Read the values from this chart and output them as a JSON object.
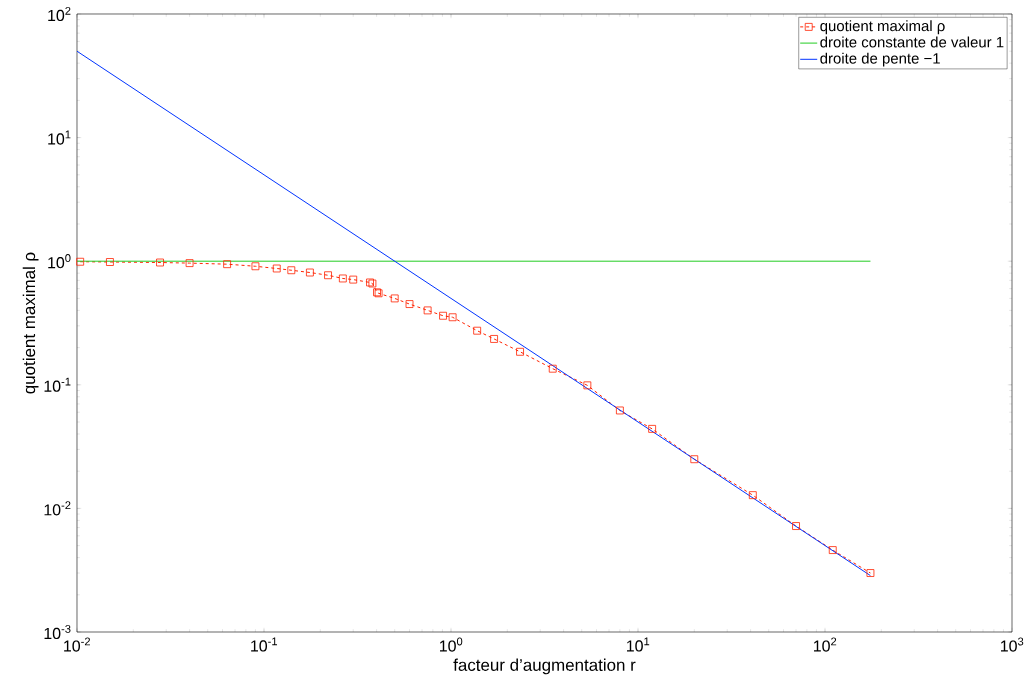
{
  "chart_data": {
    "type": "line",
    "xlabel": "facteur d’augmentation r",
    "ylabel": "quotient maximal ρ",
    "log": "xy",
    "grid": false,
    "legend": "top right",
    "xlim": [
      0.01,
      1000
    ],
    "ylim": [
      0.001,
      100
    ],
    "xticks": [
      {
        "value": 0.01,
        "label": "10$^{-2}$"
      },
      {
        "value": 0.1,
        "label": "10$^{-1}$"
      },
      {
        "value": 1,
        "label": "10$^{0}$"
      },
      {
        "value": 10,
        "label": "10$^{1}$"
      },
      {
        "value": 100,
        "label": "10$^{2}$"
      },
      {
        "value": 1000,
        "label": "10$^{3}$"
      }
    ],
    "yticks": [
      {
        "value": 0.001,
        "label": "10$^{-3}$"
      },
      {
        "value": 0.01,
        "label": "10$^{-2}$"
      },
      {
        "value": 0.1,
        "label": "10$^{-1}$"
      },
      {
        "value": 1,
        "label": "10$^{0}$"
      },
      {
        "value": 10,
        "label": "10$^{1}$"
      },
      {
        "value": 100,
        "label": "10$^{2}$"
      }
    ],
    "series": [
      {
        "name": "quotient maximal ρ",
        "color": "#ff2200",
        "marker": "square",
        "line_style": "dashed",
        "x": [
          0.0104,
          0.015,
          0.0278,
          0.04,
          0.0635,
          0.09,
          0.117,
          0.14,
          0.176,
          0.22,
          0.264,
          0.3,
          0.369,
          0.38,
          0.402,
          0.41,
          0.5,
          0.6,
          0.75,
          0.907,
          1.02,
          1.38,
          1.7,
          2.34,
          3.5,
          5.36,
          8,
          11.9,
          20,
          41.1,
          70,
          110,
          175
        ],
        "values": [
          0.99,
          0.985,
          0.976,
          0.965,
          0.946,
          0.91,
          0.873,
          0.845,
          0.81,
          0.77,
          0.725,
          0.71,
          0.673,
          0.66,
          0.56,
          0.55,
          0.5,
          0.45,
          0.4,
          0.362,
          0.352,
          0.274,
          0.235,
          0.185,
          0.135,
          0.099,
          0.062,
          0.044,
          0.025,
          0.0128,
          0.0072,
          0.0046,
          0.003
        ]
      },
      {
        "name": "droite constante de valeur 1",
        "color": "#22cc22",
        "marker": "none",
        "line_style": "solid",
        "x": [
          0.01,
          175
        ],
        "values": [
          1,
          1
        ]
      },
      {
        "name": "droite de pente −1",
        "color": "#0033ff",
        "marker": "none",
        "line_style": "solid",
        "x": [
          0.01,
          175
        ],
        "values": [
          50,
          0.00286
        ]
      }
    ]
  }
}
